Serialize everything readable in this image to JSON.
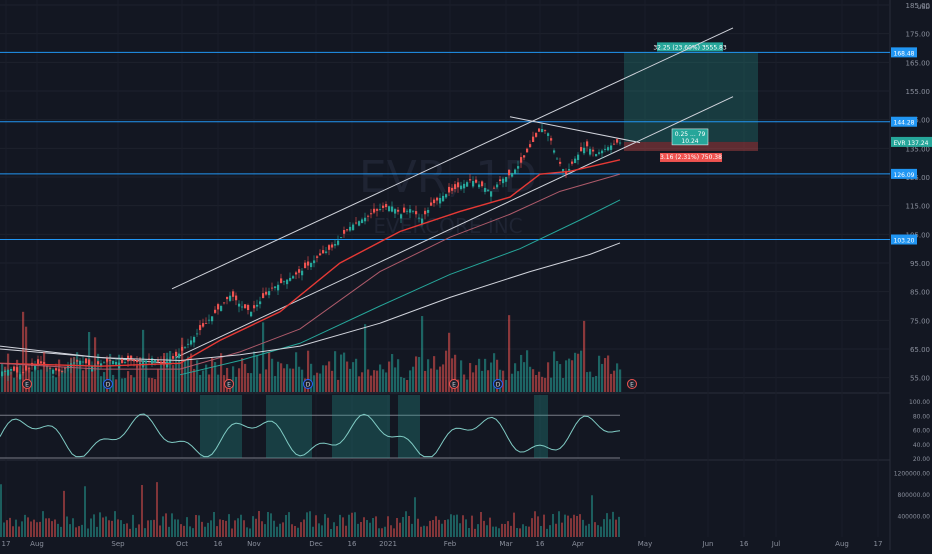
{
  "chart_data": {
    "type": "candlestick",
    "symbol_watermark": "EVR, 1D",
    "company_watermark": "EVERCORE INC",
    "currency": "USD",
    "ylim": [
      50,
      185
    ],
    "price_ticks": [
      "185.00",
      "175.00",
      "165.00",
      "155.00",
      "145.00",
      "135.00",
      "125.00",
      "115.00",
      "105.00",
      "95.00",
      "85.00",
      "75.00",
      "65.00",
      "55.00"
    ],
    "osc_ticks": [
      "100.00",
      "80.00",
      "60.00",
      "40.00",
      "20.00"
    ],
    "vol_ticks": [
      "1200000.00",
      "800000.00",
      "400000.00"
    ],
    "x_ticks": [
      "17",
      "Aug",
      "Sep",
      "Oct",
      "16",
      "Nov",
      "Dec",
      "16",
      "2021",
      "Feb",
      "Mar",
      "16",
      "Apr",
      "May",
      "Jun",
      "16",
      "Jul",
      "Aug",
      "17"
    ],
    "horizontal_levels": [
      {
        "value": 168.48,
        "label": "168.48"
      },
      {
        "value": 144.28,
        "label": "144.28"
      },
      {
        "value": 126.09,
        "label": "126.09"
      },
      {
        "value": 103.2,
        "label": "103.20"
      }
    ],
    "last_price_label": "EVR  137.24",
    "position_target_label": "32.25 (23.60%) 3555.83",
    "position_center_label": "0.25 ... 79\n10.24",
    "position_stop_label": "3.16 (2.31%) 750.38",
    "earnings_markers": [
      "E",
      "D",
      "E",
      "D",
      "E",
      "D",
      "E"
    ],
    "series": [
      {
        "name": "close",
        "points": [
          [
            0,
            57
          ],
          [
            10,
            58
          ],
          [
            20,
            56
          ],
          [
            30,
            59
          ],
          [
            40,
            60
          ],
          [
            50,
            58
          ],
          [
            60,
            57
          ],
          [
            70,
            60
          ],
          [
            80,
            61
          ],
          [
            90,
            59
          ],
          [
            100,
            60
          ],
          [
            110,
            61
          ],
          [
            120,
            60
          ],
          [
            130,
            61
          ],
          [
            140,
            60
          ],
          [
            150,
            62
          ],
          [
            160,
            60
          ],
          [
            170,
            61
          ],
          [
            180,
            64
          ],
          [
            190,
            68
          ],
          [
            200,
            72
          ],
          [
            210,
            76
          ],
          [
            220,
            80
          ],
          [
            230,
            84
          ],
          [
            240,
            80
          ],
          [
            250,
            78
          ],
          [
            260,
            82
          ],
          [
            270,
            86
          ],
          [
            280,
            88
          ],
          [
            290,
            90
          ],
          [
            300,
            92
          ],
          [
            310,
            95
          ],
          [
            320,
            98
          ],
          [
            330,
            100
          ],
          [
            340,
            104
          ],
          [
            350,
            108
          ],
          [
            360,
            110
          ],
          [
            370,
            112
          ],
          [
            380,
            114
          ],
          [
            390,
            115
          ],
          [
            400,
            112
          ],
          [
            410,
            114
          ],
          [
            420,
            110
          ],
          [
            430,
            115
          ],
          [
            440,
            118
          ],
          [
            450,
            120
          ],
          [
            460,
            122
          ],
          [
            470,
            124
          ],
          [
            480,
            122
          ],
          [
            490,
            120
          ],
          [
            500,
            124
          ],
          [
            510,
            126
          ],
          [
            520,
            130
          ],
          [
            530,
            136
          ],
          [
            540,
            142
          ],
          [
            548,
            140
          ],
          [
            555,
            132
          ],
          [
            565,
            126
          ],
          [
            575,
            132
          ],
          [
            585,
            136
          ],
          [
            595,
            133
          ],
          [
            605,
            135
          ],
          [
            615,
            137
          ],
          [
            620,
            137
          ]
        ]
      },
      {
        "name": "ema-red",
        "points": [
          [
            0,
            60
          ],
          [
            100,
            59
          ],
          [
            180,
            60
          ],
          [
            220,
            68
          ],
          [
            280,
            78
          ],
          [
            340,
            95
          ],
          [
            400,
            106
          ],
          [
            460,
            113
          ],
          [
            510,
            118
          ],
          [
            540,
            126
          ],
          [
            570,
            127
          ],
          [
            620,
            131
          ]
        ]
      },
      {
        "name": "ema-pink",
        "points": [
          [
            0,
            60
          ],
          [
            100,
            58
          ],
          [
            180,
            58
          ],
          [
            240,
            64
          ],
          [
            300,
            72
          ],
          [
            380,
            92
          ],
          [
            450,
            104
          ],
          [
            510,
            112
          ],
          [
            560,
            120
          ],
          [
            620,
            126
          ]
        ]
      },
      {
        "name": "sma-teal",
        "points": [
          [
            180,
            56
          ],
          [
            240,
            61
          ],
          [
            300,
            67
          ],
          [
            380,
            80
          ],
          [
            450,
            91
          ],
          [
            520,
            100
          ],
          [
            580,
            110
          ],
          [
            620,
            117
          ]
        ]
      },
      {
        "name": "sma-white",
        "points": [
          [
            0,
            66
          ],
          [
            100,
            62
          ],
          [
            180,
            61
          ],
          [
            240,
            63
          ],
          [
            300,
            66
          ],
          [
            380,
            74
          ],
          [
            450,
            83
          ],
          [
            530,
            92
          ],
          [
            590,
            98
          ],
          [
            620,
            102
          ]
        ]
      }
    ],
    "annotation_lines": [
      {
        "from": [
          172,
          86
        ],
        "to": [
          733,
          177
        ]
      },
      {
        "from": [
          176,
          62
        ],
        "to": [
          733,
          153
        ]
      },
      {
        "from": [
          510,
          146
        ],
        "to": [
          640,
          137
        ]
      },
      {
        "from": [
          0,
          65
        ],
        "to": [
          170,
          60
        ]
      }
    ],
    "grid": true
  }
}
